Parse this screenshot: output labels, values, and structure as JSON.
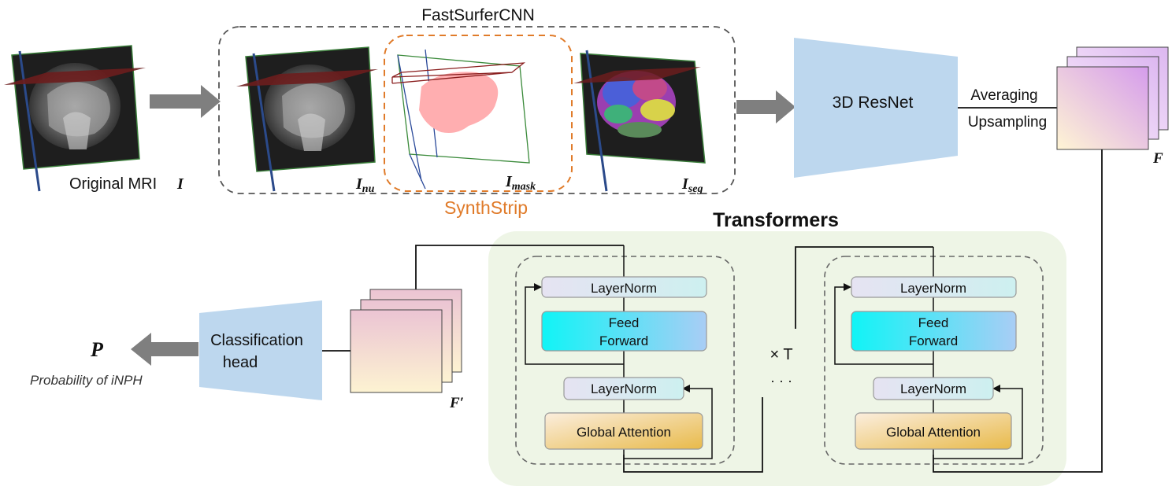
{
  "labels": {
    "fastsurfer": "FastSurferCNN",
    "synthstrip": "SynthStrip",
    "original_mri": "Original MRI",
    "original_mri_sym": "I",
    "i_nu_base": "I",
    "i_nu_sub": "nu",
    "i_mask_base": "I",
    "i_mask_sub": "mask",
    "i_seg_base": "I",
    "i_seg_sub": "seg",
    "resnet": "3D ResNet",
    "averaging": "Averaging",
    "upsampling": "Upsampling",
    "feature_f": "F",
    "transformers": "Transformers",
    "feature_f_prime": "F′",
    "classification_line1": "Classification",
    "classification_line2": "head",
    "prob_symbol": "P",
    "prob_text": "Probability of iNPH",
    "times_t": "× T",
    "dots": "· · ·"
  },
  "blocks": [
    {
      "layernorm_top": "LayerNorm",
      "ff_line1": "Feed",
      "ff_line2": "Forward",
      "layernorm_bottom": "LayerNorm",
      "attention": "Global Attention"
    },
    {
      "layernorm_top": "LayerNorm",
      "ff_line1": "Feed",
      "ff_line2": "Forward",
      "layernorm_bottom": "LayerNorm",
      "attention": "Global Attention"
    }
  ],
  "colors": {
    "arrow_gray": "#7f7f7f",
    "resnet_blue": "#bdd7ee",
    "synthstrip_orange": "#e07b2a",
    "transformer_bg": "#eef5e6",
    "layernorm_fill": "#e3e4f0",
    "ff_cyan": "#22f0f4",
    "attention_gold": "#e7bf56"
  }
}
